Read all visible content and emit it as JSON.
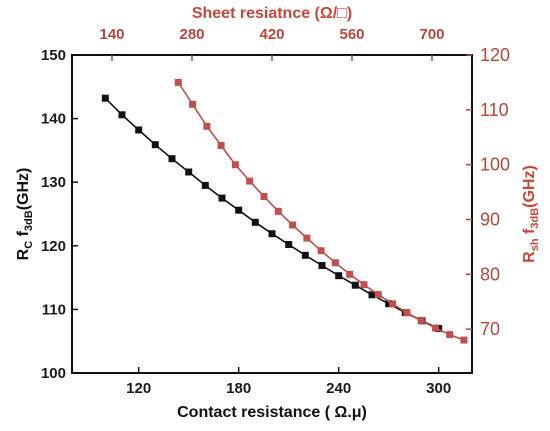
{
  "chart_data": {
    "type": "line",
    "title": "",
    "top_axis": {
      "label": "Sheet resiatnce (Ω/□)",
      "range": [
        70,
        770
      ],
      "ticks": [
        140,
        280,
        420,
        560,
        700
      ]
    },
    "bottom_axis": {
      "label": "Contact resistance ( Ω.μ)",
      "range": [
        80,
        320
      ],
      "ticks": [
        120,
        180,
        240,
        300
      ]
    },
    "left_axis": {
      "label_main": "R",
      "label_sub1": "C",
      "label_mid": " f",
      "label_sub2": "3dB",
      "label_tail": "(GHz)",
      "range": [
        100,
        150
      ],
      "ticks": [
        100,
        110,
        120,
        130,
        140,
        150
      ]
    },
    "right_axis": {
      "label_main": "R",
      "label_sub1": "sh",
      "label_mid": " f",
      "label_sub2": "3dB",
      "label_tail": "(GHz)",
      "range": [
        62,
        120
      ],
      "ticks": [
        70,
        80,
        90,
        100,
        110,
        120
      ]
    },
    "series": [
      {
        "axis": "bottom-left",
        "color": "#111111",
        "marker": "square",
        "x": [
          100,
          110,
          120,
          130,
          140,
          150,
          160,
          170,
          180,
          190,
          200,
          210,
          220,
          230,
          240,
          250,
          260,
          270,
          280,
          290,
          300
        ],
        "y": [
          143.2,
          140.6,
          138.2,
          135.9,
          133.7,
          131.6,
          129.5,
          127.5,
          125.6,
          123.7,
          121.9,
          120.2,
          118.5,
          116.9,
          115.3,
          113.8,
          112.3,
          110.9,
          109.5,
          108.2,
          107.0
        ]
      },
      {
        "axis": "top-right",
        "color": "#c0504d",
        "marker": "square",
        "x": [
          256,
          281,
          306,
          331,
          356,
          381,
          406,
          431,
          456,
          481,
          506,
          531,
          556,
          581,
          606,
          631,
          656,
          681,
          706,
          731,
          756
        ],
        "y": [
          115.0,
          111.0,
          107.0,
          103.5,
          100.0,
          97.0,
          94.2,
          91.5,
          89.0,
          86.6,
          84.3,
          82.1,
          80.0,
          78.1,
          76.3,
          74.6,
          73.0,
          71.6,
          70.2,
          69.0,
          68.0
        ]
      }
    ]
  }
}
